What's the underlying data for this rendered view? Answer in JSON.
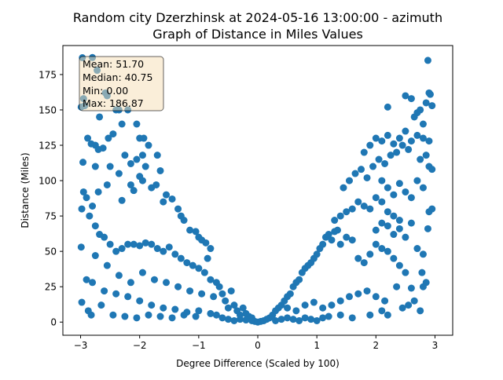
{
  "chart_data": {
    "type": "scatter",
    "title": "Random city Dzerzhinsk at 2024-05-16 13:00:00  - azimuth",
    "subtitle": "Graph of Distance in Miles Values",
    "xlabel": "Degree Difference (Scaled by 100)",
    "ylabel": "Distance (Miles)",
    "xlim": [
      -3.3,
      3.3
    ],
    "ylim": [
      -9.3,
      195.5
    ],
    "xticks": [
      -3,
      -2,
      -1,
      0,
      1,
      2,
      3
    ],
    "yticks": [
      0,
      25,
      50,
      75,
      100,
      125,
      150,
      175
    ],
    "grid": false,
    "point_color": "#1f77b4",
    "stats": {
      "mean": "Mean: 51.70",
      "median": "Median: 40.75",
      "min": "Min: 0.00",
      "max": "Max: 186.87"
    },
    "points": [
      [
        -2.97,
        186.9
      ],
      [
        -2.95,
        158.0
      ],
      [
        -2.99,
        152.0
      ],
      [
        -2.93,
        153.0
      ],
      [
        -2.8,
        187.0
      ],
      [
        -2.72,
        178.0
      ],
      [
        -2.58,
        162.0
      ],
      [
        -2.55,
        160.0
      ],
      [
        -2.35,
        150.0
      ],
      [
        -2.2,
        150.0
      ],
      [
        -2.68,
        145.0
      ],
      [
        -2.4,
        150.0
      ],
      [
        -2.96,
        113.0
      ],
      [
        -2.88,
        130.0
      ],
      [
        -2.82,
        126.0
      ],
      [
        -2.75,
        125.0
      ],
      [
        -2.7,
        122.0
      ],
      [
        -2.62,
        123.0
      ],
      [
        -2.53,
        130.0
      ],
      [
        -2.45,
        133.0
      ],
      [
        -2.3,
        140.0
      ],
      [
        -2.05,
        140.0
      ],
      [
        -2.0,
        130.0
      ],
      [
        -1.93,
        130.0
      ],
      [
        -2.75,
        110.0
      ],
      [
        -2.5,
        110.0
      ],
      [
        -2.35,
        105.0
      ],
      [
        -2.25,
        118.0
      ],
      [
        -2.15,
        112.0
      ],
      [
        -2.05,
        115.0
      ],
      [
        -1.95,
        118.0
      ],
      [
        -1.85,
        125.0
      ],
      [
        -1.7,
        118.0
      ],
      [
        -1.65,
        107.0
      ],
      [
        -2.0,
        103.0
      ],
      [
        -1.9,
        110.0
      ],
      [
        -2.95,
        92.0
      ],
      [
        -2.9,
        88.0
      ],
      [
        -2.8,
        82.0
      ],
      [
        -2.7,
        92.0
      ],
      [
        -2.55,
        97.0
      ],
      [
        -2.3,
        86.0
      ],
      [
        -2.15,
        97.0
      ],
      [
        -2.1,
        93.0
      ],
      [
        -1.95,
        100.0
      ],
      [
        -1.8,
        95.0
      ],
      [
        -1.72,
        97.0
      ],
      [
        -1.6,
        85.0
      ],
      [
        -1.55,
        90.0
      ],
      [
        -1.45,
        87.0
      ],
      [
        -1.35,
        80.0
      ],
      [
        -1.3,
        75.0
      ],
      [
        -1.25,
        72.0
      ],
      [
        -1.15,
        65.0
      ],
      [
        -1.05,
        64.0
      ],
      [
        -1.0,
        60.0
      ],
      [
        -0.95,
        58.0
      ],
      [
        -0.88,
        56.0
      ],
      [
        -0.8,
        52.0
      ],
      [
        -0.85,
        45.0
      ],
      [
        -2.98,
        80.0
      ],
      [
        -2.85,
        75.0
      ],
      [
        -2.75,
        68.0
      ],
      [
        -2.68,
        62.0
      ],
      [
        -2.6,
        60.0
      ],
      [
        -2.5,
        55.0
      ],
      [
        -2.4,
        50.0
      ],
      [
        -2.3,
        52.0
      ],
      [
        -2.2,
        55.0
      ],
      [
        -2.1,
        55.0
      ],
      [
        -2.0,
        54.0
      ],
      [
        -1.9,
        56.0
      ],
      [
        -1.8,
        55.0
      ],
      [
        -1.7,
        52.0
      ],
      [
        -1.6,
        50.0
      ],
      [
        -1.5,
        53.0
      ],
      [
        -1.4,
        48.0
      ],
      [
        -1.3,
        45.0
      ],
      [
        -1.2,
        42.0
      ],
      [
        -1.1,
        40.0
      ],
      [
        -1.0,
        38.0
      ],
      [
        -0.9,
        35.0
      ],
      [
        -0.8,
        30.0
      ],
      [
        -0.7,
        28.0
      ],
      [
        -2.99,
        53.0
      ],
      [
        -2.75,
        47.0
      ],
      [
        -2.55,
        40.0
      ],
      [
        -2.35,
        33.0
      ],
      [
        -2.15,
        28.0
      ],
      [
        -1.95,
        35.0
      ],
      [
        -1.75,
        30.0
      ],
      [
        -1.55,
        28.0
      ],
      [
        -1.35,
        25.0
      ],
      [
        -1.15,
        22.0
      ],
      [
        -0.95,
        20.0
      ],
      [
        -0.75,
        18.0
      ],
      [
        -2.9,
        30.0
      ],
      [
        -2.8,
        28.0
      ],
      [
        -2.6,
        22.0
      ],
      [
        -2.4,
        20.0
      ],
      [
        -2.2,
        18.0
      ],
      [
        -2.0,
        15.0
      ],
      [
        -1.8,
        12.0
      ],
      [
        -1.6,
        10.0
      ],
      [
        -1.4,
        9.0
      ],
      [
        -1.2,
        7.0
      ],
      [
        -1.0,
        8.0
      ],
      [
        -0.8,
        6.0
      ],
      [
        -2.98,
        14.0
      ],
      [
        -2.87,
        8.0
      ],
      [
        -2.82,
        5.0
      ],
      [
        -2.65,
        12.0
      ],
      [
        -2.45,
        5.0
      ],
      [
        -2.25,
        4.0
      ],
      [
        -2.05,
        3.0
      ],
      [
        -1.85,
        5.0
      ],
      [
        -1.65,
        4.0
      ],
      [
        -1.45,
        3.0
      ],
      [
        -1.25,
        5.0
      ],
      [
        -1.05,
        4.0
      ],
      [
        -0.65,
        25.0
      ],
      [
        -0.6,
        20.0
      ],
      [
        -0.55,
        15.0
      ],
      [
        -0.5,
        10.0
      ],
      [
        -0.45,
        22.0
      ],
      [
        -0.4,
        12.0
      ],
      [
        -0.35,
        8.0
      ],
      [
        -0.3,
        5.0
      ],
      [
        -0.25,
        10.0
      ],
      [
        -0.2,
        6.0
      ],
      [
        -0.15,
        4.0
      ],
      [
        -0.1,
        3.0
      ],
      [
        -0.7,
        5.0
      ],
      [
        -0.6,
        3.0
      ],
      [
        -0.5,
        2.0
      ],
      [
        -0.4,
        1.0
      ],
      [
        -0.3,
        2.0
      ],
      [
        -0.2,
        1.5
      ],
      [
        -0.1,
        1.0
      ],
      [
        -0.05,
        0.5
      ],
      [
        0.0,
        0.0
      ],
      [
        0.05,
        0.5
      ],
      [
        0.1,
        1.0
      ],
      [
        0.15,
        2.0
      ],
      [
        0.2,
        3.0
      ],
      [
        0.25,
        5.0
      ],
      [
        0.3,
        8.0
      ],
      [
        0.35,
        10.0
      ],
      [
        0.4,
        12.0
      ],
      [
        0.45,
        15.0
      ],
      [
        0.5,
        18.0
      ],
      [
        0.55,
        20.0
      ],
      [
        0.6,
        25.0
      ],
      [
        0.65,
        28.0
      ],
      [
        0.7,
        30.0
      ],
      [
        0.75,
        35.0
      ],
      [
        0.8,
        38.0
      ],
      [
        0.85,
        40.0
      ],
      [
        0.9,
        42.0
      ],
      [
        0.95,
        45.0
      ],
      [
        1.0,
        48.0
      ],
      [
        1.05,
        52.0
      ],
      [
        1.1,
        55.0
      ],
      [
        1.15,
        60.0
      ],
      [
        1.2,
        62.0
      ],
      [
        1.25,
        58.0
      ],
      [
        1.3,
        64.0
      ],
      [
        1.35,
        65.0
      ],
      [
        0.3,
        1.0
      ],
      [
        0.4,
        2.0
      ],
      [
        0.5,
        3.0
      ],
      [
        0.6,
        2.0
      ],
      [
        0.7,
        1.0
      ],
      [
        0.8,
        3.0
      ],
      [
        0.9,
        2.0
      ],
      [
        1.0,
        1.0
      ],
      [
        1.1,
        3.0
      ],
      [
        1.2,
        4.0
      ],
      [
        1.4,
        5.0
      ],
      [
        1.6,
        3.0
      ],
      [
        0.5,
        10.0
      ],
      [
        0.65,
        8.0
      ],
      [
        0.8,
        12.0
      ],
      [
        0.95,
        14.0
      ],
      [
        1.1,
        10.0
      ],
      [
        1.25,
        12.0
      ],
      [
        1.4,
        15.0
      ],
      [
        1.55,
        18.0
      ],
      [
        1.7,
        20.0
      ],
      [
        1.85,
        22.0
      ],
      [
        2.0,
        18.0
      ],
      [
        2.15,
        15.0
      ],
      [
        1.4,
        55.0
      ],
      [
        1.5,
        60.0
      ],
      [
        1.6,
        58.0
      ],
      [
        1.7,
        45.0
      ],
      [
        1.8,
        42.0
      ],
      [
        1.9,
        48.0
      ],
      [
        2.0,
        55.0
      ],
      [
        2.1,
        52.0
      ],
      [
        2.2,
        50.0
      ],
      [
        2.3,
        45.0
      ],
      [
        2.4,
        40.0
      ],
      [
        2.5,
        35.0
      ],
      [
        1.3,
        72.0
      ],
      [
        1.4,
        75.0
      ],
      [
        1.5,
        78.0
      ],
      [
        1.6,
        80.0
      ],
      [
        1.7,
        85.0
      ],
      [
        1.8,
        82.0
      ],
      [
        1.9,
        80.0
      ],
      [
        2.0,
        88.0
      ],
      [
        2.1,
        85.0
      ],
      [
        2.2,
        78.0
      ],
      [
        2.3,
        75.0
      ],
      [
        2.4,
        72.0
      ],
      [
        1.45,
        95.0
      ],
      [
        1.55,
        100.0
      ],
      [
        1.65,
        105.0
      ],
      [
        1.75,
        108.0
      ],
      [
        1.85,
        102.0
      ],
      [
        1.95,
        110.0
      ],
      [
        2.05,
        115.0
      ],
      [
        2.15,
        112.0
      ],
      [
        2.25,
        118.0
      ],
      [
        2.35,
        120.0
      ],
      [
        2.45,
        125.0
      ],
      [
        2.55,
        122.0
      ],
      [
        1.8,
        120.0
      ],
      [
        1.9,
        125.0
      ],
      [
        2.0,
        130.0
      ],
      [
        2.1,
        128.0
      ],
      [
        2.2,
        132.0
      ],
      [
        2.3,
        126.0
      ],
      [
        2.4,
        130.0
      ],
      [
        2.5,
        135.0
      ],
      [
        2.6,
        128.0
      ],
      [
        2.7,
        132.0
      ],
      [
        2.8,
        130.0
      ],
      [
        2.9,
        128.0
      ],
      [
        2.2,
        152.0
      ],
      [
        2.5,
        160.0
      ],
      [
        2.6,
        158.0
      ],
      [
        2.7,
        148.0
      ],
      [
        2.8,
        140.0
      ],
      [
        2.85,
        155.0
      ],
      [
        2.9,
        162.0
      ],
      [
        2.95,
        153.0
      ],
      [
        2.88,
        185.0
      ],
      [
        2.92,
        161.0
      ],
      [
        2.75,
        150.0
      ],
      [
        2.65,
        145.0
      ],
      [
        2.1,
        100.0
      ],
      [
        2.2,
        95.0
      ],
      [
        2.3,
        90.0
      ],
      [
        2.4,
        98.0
      ],
      [
        2.5,
        92.0
      ],
      [
        2.6,
        88.0
      ],
      [
        2.7,
        100.0
      ],
      [
        2.8,
        95.0
      ],
      [
        2.9,
        110.0
      ],
      [
        2.95,
        108.0
      ],
      [
        2.85,
        118.0
      ],
      [
        2.75,
        115.0
      ],
      [
        2.0,
        65.0
      ],
      [
        2.1,
        70.0
      ],
      [
        2.2,
        68.0
      ],
      [
        2.3,
        62.0
      ],
      [
        2.4,
        66.0
      ],
      [
        2.5,
        60.0
      ],
      [
        2.6,
        70.0
      ],
      [
        2.7,
        52.0
      ],
      [
        2.8,
        48.0
      ],
      [
        2.9,
        78.0
      ],
      [
        2.95,
        80.0
      ],
      [
        2.88,
        66.0
      ],
      [
        1.9,
        5.0
      ],
      [
        2.1,
        8.0
      ],
      [
        2.2,
        5.0
      ],
      [
        2.35,
        25.0
      ],
      [
        2.45,
        10.0
      ],
      [
        2.55,
        12.0
      ],
      [
        2.65,
        15.0
      ],
      [
        2.75,
        8.0
      ],
      [
        2.8,
        25.0
      ],
      [
        2.85,
        28.0
      ],
      [
        2.78,
        35.0
      ],
      [
        2.6,
        24.0
      ]
    ]
  }
}
